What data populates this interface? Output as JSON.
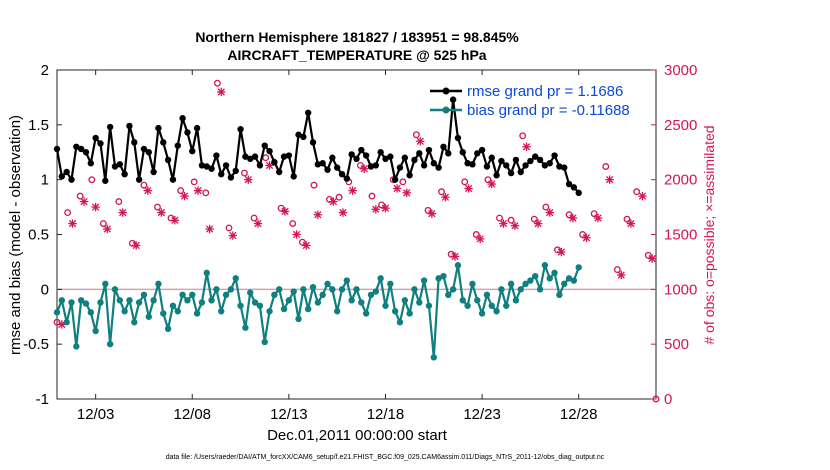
{
  "chart_data": {
    "type": "line",
    "title": "Northern Hemisphere 181827 / 183951 = 98.845%",
    "subtitle": "AIRCRAFT_TEMPERATURE @ 525 hPa",
    "xlabel": "Dec.01,2011 00:00:00 start",
    "ylabel": "rmse and bias (model - observation)",
    "y2label": "# of obs: o=possible; ×=assimilated",
    "xlim": [
      1.0,
      32.0
    ],
    "ylim": [
      -1,
      2
    ],
    "y2lim": [
      0,
      3000
    ],
    "x_ticks": [
      3,
      8,
      13,
      18,
      23,
      28
    ],
    "x_tick_labels": [
      "12/03",
      "12/08",
      "12/13",
      "12/18",
      "12/23",
      "12/28"
    ],
    "y_ticks": [
      -1,
      -0.5,
      0,
      0.5,
      1,
      1.5,
      2
    ],
    "y_tick_labels": [
      "-1",
      "-0.5",
      "0",
      "0.5",
      "1",
      "1.5",
      "2"
    ],
    "y2_ticks": [
      0,
      500,
      1000,
      1500,
      2000,
      2500,
      3000
    ],
    "y2_tick_labels": [
      "0",
      "500",
      "1000",
      "1500",
      "2000",
      "2500",
      "3000"
    ],
    "grid": false,
    "legend_position": "top-right",
    "x_step_days": 0.25,
    "series": [
      {
        "name": "rmse grand pr = 1.1686",
        "color": "#000000",
        "axis": "left",
        "values": [
          1.28,
          1.03,
          1.07,
          1.0,
          1.3,
          1.28,
          1.25,
          1.15,
          1.38,
          1.33,
          0.99,
          1.48,
          1.12,
          1.14,
          1.05,
          1.49,
          1.34,
          1.0,
          1.28,
          1.25,
          1.07,
          1.47,
          1.34,
          1.18,
          1.0,
          1.31,
          1.56,
          1.43,
          1.26,
          1.47,
          1.13,
          1.12,
          1.1,
          1.22,
          1.05,
          1.13,
          1.02,
          1.08,
          1.46,
          1.21,
          1.19,
          1.21,
          1.13,
          1.31,
          1.26,
          1.16,
          1.07,
          1.21,
          1.22,
          1.03,
          1.41,
          1.39,
          1.61,
          1.34,
          1.14,
          1.15,
          1.09,
          1.2,
          1.11,
          1.05,
          1.01,
          1.23,
          1.19,
          1.27,
          1.22,
          1.12,
          1.13,
          1.25,
          1.19,
          1.21,
          1.0,
          1.11,
          1.2,
          1.04,
          1.18,
          1.24,
          1.13,
          1.27,
          1.15,
          1.11,
          1.3,
          1.24,
          1.73,
          1.38,
          1.25,
          1.15,
          1.14,
          1.24,
          1.27,
          1.12,
          1.2,
          1.04,
          1.17,
          1.13,
          1.06,
          1.18,
          1.07,
          1.13,
          1.17,
          1.21,
          1.18,
          1.13,
          1.15,
          1.22,
          1.12,
          1.11,
          0.96,
          0.93,
          0.88
        ]
      },
      {
        "name": "bias grand pr = -0.11688",
        "color": "#0f7f80",
        "axis": "left",
        "values": [
          -0.21,
          -0.1,
          -0.3,
          -0.12,
          -0.52,
          -0.1,
          -0.13,
          -0.21,
          -0.38,
          -0.12,
          0.05,
          -0.5,
          0.0,
          -0.1,
          -0.2,
          -0.1,
          -0.3,
          -0.12,
          -0.05,
          -0.25,
          -0.1,
          0.05,
          -0.22,
          -0.36,
          -0.15,
          -0.2,
          -0.05,
          -0.1,
          -0.05,
          -0.22,
          -0.12,
          0.15,
          -0.1,
          0.0,
          -0.2,
          -0.05,
          0.0,
          0.1,
          -0.15,
          -0.35,
          -0.03,
          -0.12,
          -0.15,
          -0.48,
          -0.2,
          -0.05,
          0.0,
          -0.18,
          -0.1,
          -0.02,
          -0.27,
          0.0,
          -0.18,
          0.02,
          -0.12,
          -0.05,
          0.05,
          0.0,
          -0.2,
          0.0,
          0.08,
          -0.1,
          0.0,
          -0.12,
          -0.22,
          -0.05,
          -0.02,
          0.1,
          -0.15,
          0.05,
          -0.2,
          -0.3,
          -0.1,
          -0.22,
          0.0,
          -0.12,
          0.08,
          -0.15,
          -0.62,
          0.1,
          0.12,
          -0.05,
          0.0,
          0.22,
          -0.1,
          -0.15,
          0.05,
          -0.1,
          -0.22,
          -0.05,
          -0.15,
          -0.2,
          0.0,
          -0.15,
          0.05,
          -0.1,
          0.0,
          0.05,
          0.08,
          0.12,
          0.0,
          0.22,
          0.1,
          0.15,
          -0.05,
          0.05,
          0.1,
          0.08,
          0.2
        ]
      },
      {
        "name": "possible obs",
        "marker": "o",
        "color": "#d4145a",
        "axis": "right",
        "x": [
          1.0,
          1.55,
          2.2,
          2.8,
          3.4,
          4.2,
          4.9,
          5.5,
          6.2,
          6.9,
          7.4,
          8.1,
          8.7,
          9.3,
          9.9,
          10.7,
          11.2,
          11.8,
          12.6,
          13.2,
          13.7,
          14.3,
          15.1,
          15.6,
          16.1,
          16.7,
          17.3,
          17.8,
          18.4,
          18.9,
          19.6,
          20.2,
          20.9,
          21.4,
          22.1,
          22.7,
          23.3,
          23.9,
          24.5,
          25.1,
          25.7,
          26.3,
          26.9,
          27.5,
          28.2,
          28.8,
          29.4,
          30.0,
          30.5,
          31.0,
          31.6,
          32.0
        ],
        "values": [
          700,
          1700,
          1850,
          2000,
          1600,
          1800,
          1420,
          1950,
          1750,
          1650,
          1900,
          1980,
          1880,
          2880,
          1560,
          2060,
          1650,
          2200,
          1740,
          1600,
          1430,
          1950,
          1820,
          1840,
          1980,
          2130,
          1850,
          1770,
          2000,
          1980,
          2410,
          1720,
          1890,
          1320,
          1980,
          1500,
          2000,
          1650,
          1630,
          2400,
          1640,
          1750,
          1360,
          1680,
          1500,
          1690,
          2120,
          1180,
          1640,
          1890,
          1310,
          0
        ]
      },
      {
        "name": "assimilated obs",
        "marker": "x",
        "color": "#d4145a",
        "axis": "right",
        "x": [
          1.25,
          1.8,
          2.4,
          3.0,
          3.6,
          4.4,
          5.1,
          5.7,
          6.4,
          7.1,
          7.6,
          8.3,
          8.9,
          9.5,
          10.1,
          10.9,
          11.4,
          12.0,
          12.8,
          13.4,
          13.9,
          14.5,
          15.3,
          15.8,
          16.3,
          16.9,
          17.5,
          18.0,
          18.6,
          19.1,
          19.8,
          20.4,
          21.1,
          21.6,
          22.3,
          22.9,
          23.5,
          24.1,
          24.7,
          25.3,
          25.9,
          26.5,
          27.1,
          27.7,
          28.4,
          29.0,
          29.6,
          30.2,
          30.7,
          31.3,
          31.8
        ],
        "values": [
          680,
          1600,
          1800,
          1750,
          1550,
          1700,
          1400,
          1900,
          1700,
          1630,
          1850,
          1900,
          1550,
          2800,
          1490,
          2000,
          1600,
          2130,
          1710,
          1500,
          1400,
          1680,
          1800,
          1700,
          1900,
          2100,
          1730,
          1740,
          1920,
          1880,
          2350,
          1690,
          1840,
          1300,
          1920,
          1460,
          1960,
          1600,
          1580,
          2300,
          1600,
          1700,
          1340,
          1650,
          1470,
          1650,
          2000,
          1130,
          1600,
          1850,
          1280
        ]
      }
    ]
  },
  "footnote": "data file: /Users/raeder/DAI/ATM_forcXX/CAM6_setup/f.e21.FHIST_BGC.f09_025.CAM6assim.011/Diags_NTrS_2011-12/obs_diag_output.nc"
}
